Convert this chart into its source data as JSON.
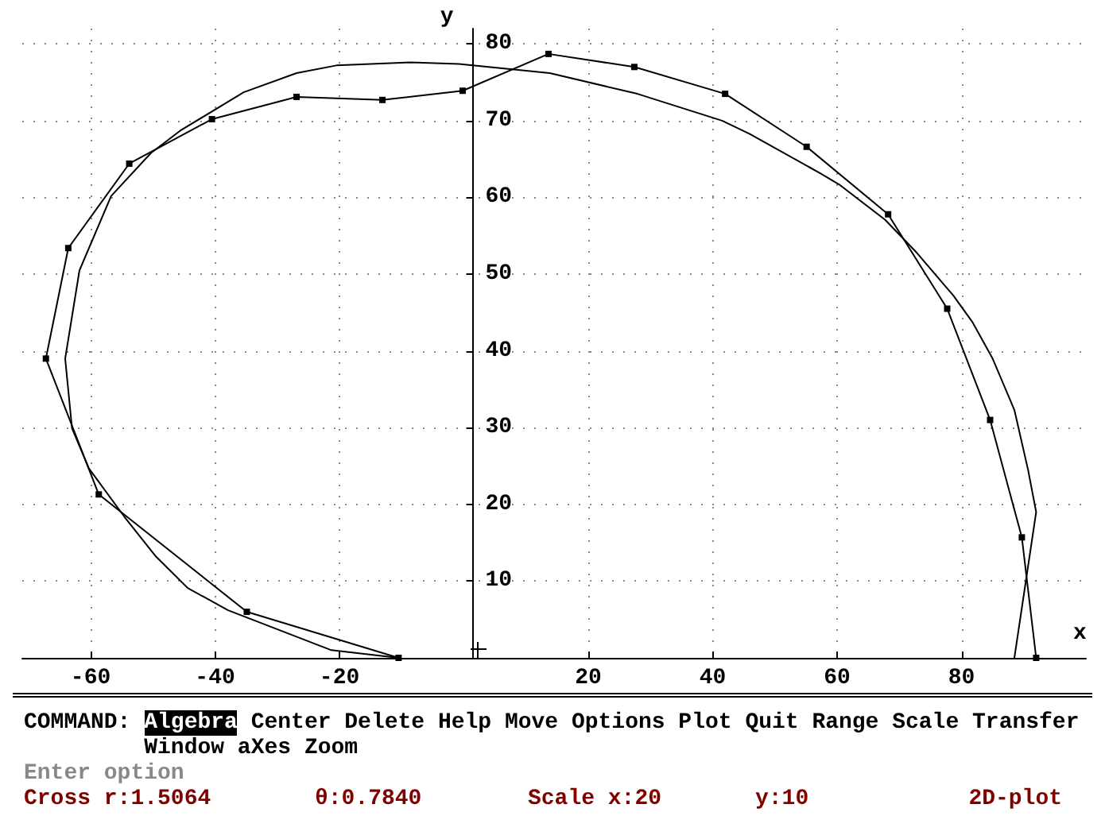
{
  "chart_data": {
    "type": "line",
    "xlabel": "x",
    "ylabel": "y",
    "xlim": [
      -71,
      100
    ],
    "ylim": [
      0,
      82
    ],
    "xticks": [
      -60,
      -40,
      -20,
      20,
      40,
      60,
      80
    ],
    "yticks": [
      10,
      20,
      30,
      40,
      50,
      60,
      70,
      80
    ],
    "grid": true,
    "line_style": "solid",
    "series": [
      {
        "color": "#000000",
        "marker": "square",
        "x": [
          -10.5,
          -34.9,
          -58.7,
          -67.2,
          -63.6,
          -53.8,
          -40.5,
          -26.9,
          -13.1,
          -0.2,
          13.6,
          27.4,
          42,
          55.1,
          68.2,
          77.7,
          84.6,
          89.7,
          92
        ],
        "values": [
          0,
          6,
          21.3,
          39,
          53.4,
          64.4,
          70.2,
          73.1,
          72.7,
          73.9,
          78.7,
          77,
          73.5,
          66.6,
          57.8,
          45.5,
          31,
          15.7,
          0
        ]
      },
      {
        "color": "#000000",
        "marker": "none",
        "x": [
          88.5,
          92,
          90.7,
          88.5,
          85,
          81.8,
          78.7,
          72.8,
          67.7,
          60.3,
          57.4,
          45.9,
          41.5,
          27.9,
          13.8,
          -0.8,
          -8.5,
          -20.5,
          -26.9,
          -35.4,
          -45.6,
          -50.3,
          -56.7,
          -61.8,
          -64.1,
          -63,
          -60.3,
          -54.6,
          -49.5,
          -44.4,
          -37.9,
          -21.3,
          -10.5
        ],
        "values": [
          0,
          19,
          24.5,
          32.3,
          39,
          43.7,
          47.2,
          52.8,
          57.1,
          61.7,
          63.1,
          68.3,
          70,
          73.5,
          76.2,
          77.4,
          77.6,
          77.2,
          76.2,
          73.7,
          68.7,
          65.8,
          60.2,
          50.5,
          39,
          29.9,
          24.7,
          18.4,
          13.2,
          9.1,
          6.2,
          1,
          0
        ]
      }
    ],
    "annotations": [
      "COMMAND:",
      "Algebra Center Delete Help Move Options Plot Quit Range Scale Transfer",
      "Window aXes Zoom",
      "Enter option",
      "Cross r:1.5064",
      "θ:0.7840",
      "Scale x:20",
      "y:10",
      "2D-plot"
    ]
  }
}
